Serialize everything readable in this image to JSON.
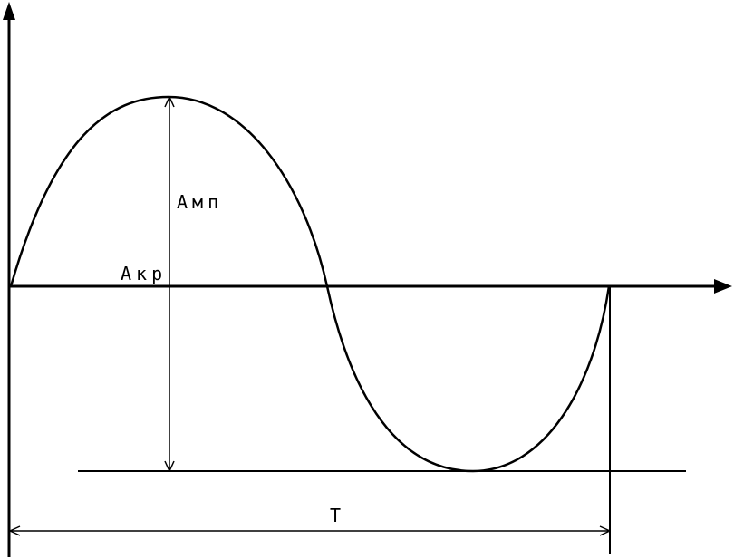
{
  "labels": {
    "amplitude": "Амп",
    "crest": "Акр",
    "period": "Т"
  },
  "colors": {
    "stroke": "#000000",
    "background": "#ffffff"
  }
}
